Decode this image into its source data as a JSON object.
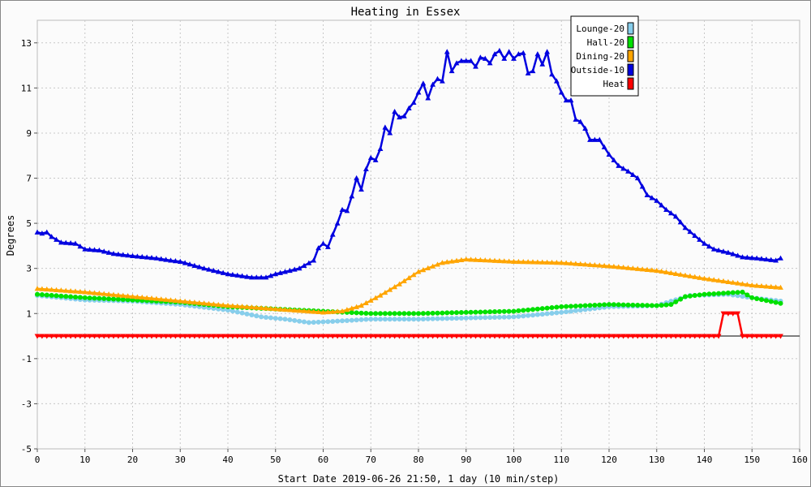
{
  "chart_data": {
    "type": "line",
    "title": "Heating in Essex",
    "xlabel": "Start Date 2019-06-26 21:50, 1 day (10 min/step)",
    "ylabel": "Degrees",
    "xlim": [
      0,
      160
    ],
    "ylim": [
      -5,
      14
    ],
    "xticks": [
      0,
      10,
      20,
      30,
      40,
      50,
      60,
      70,
      80,
      90,
      100,
      110,
      120,
      130,
      140,
      150,
      160
    ],
    "yticks": [
      -5,
      -3,
      -1,
      1,
      3,
      5,
      7,
      9,
      11,
      13
    ],
    "grid": true,
    "legend_position": "top-right",
    "series": [
      {
        "name": "Lounge-20",
        "color": "#87ceeb",
        "marker": "circle",
        "points": [
          [
            0,
            1.8
          ],
          [
            10,
            1.6
          ],
          [
            20,
            1.55
          ],
          [
            30,
            1.4
          ],
          [
            40,
            1.15
          ],
          [
            47,
            0.85
          ],
          [
            52,
            0.75
          ],
          [
            57,
            0.6
          ],
          [
            62,
            0.65
          ],
          [
            70,
            0.75
          ],
          [
            80,
            0.75
          ],
          [
            90,
            0.8
          ],
          [
            100,
            0.85
          ],
          [
            110,
            1.05
          ],
          [
            120,
            1.3
          ],
          [
            130,
            1.35
          ],
          [
            137,
            1.8
          ],
          [
            145,
            1.85
          ],
          [
            150,
            1.7
          ],
          [
            156,
            1.55
          ]
        ]
      },
      {
        "name": "Hall-20",
        "color": "#00e000",
        "marker": "circle",
        "points": [
          [
            0,
            1.85
          ],
          [
            10,
            1.7
          ],
          [
            20,
            1.6
          ],
          [
            30,
            1.5
          ],
          [
            40,
            1.3
          ],
          [
            50,
            1.2
          ],
          [
            60,
            1.1
          ],
          [
            70,
            1.0
          ],
          [
            80,
            1.0
          ],
          [
            90,
            1.05
          ],
          [
            100,
            1.1
          ],
          [
            110,
            1.3
          ],
          [
            120,
            1.4
          ],
          [
            130,
            1.35
          ],
          [
            133,
            1.4
          ],
          [
            136,
            1.75
          ],
          [
            140,
            1.85
          ],
          [
            148,
            1.95
          ],
          [
            150,
            1.7
          ],
          [
            156,
            1.45
          ]
        ]
      },
      {
        "name": "Dining-20",
        "color": "#ffa500",
        "marker": "triangle-up",
        "points": [
          [
            0,
            2.1
          ],
          [
            10,
            1.95
          ],
          [
            20,
            1.75
          ],
          [
            30,
            1.55
          ],
          [
            40,
            1.35
          ],
          [
            50,
            1.2
          ],
          [
            60,
            1.05
          ],
          [
            64,
            1.1
          ],
          [
            68,
            1.35
          ],
          [
            72,
            1.8
          ],
          [
            76,
            2.3
          ],
          [
            80,
            2.85
          ],
          [
            85,
            3.25
          ],
          [
            90,
            3.4
          ],
          [
            95,
            3.35
          ],
          [
            100,
            3.3
          ],
          [
            110,
            3.25
          ],
          [
            120,
            3.1
          ],
          [
            130,
            2.9
          ],
          [
            140,
            2.55
          ],
          [
            150,
            2.25
          ],
          [
            156,
            2.15
          ]
        ]
      },
      {
        "name": "Outside-10",
        "color": "#0000e0",
        "marker": "triangle-up",
        "points": [
          [
            0,
            4.6
          ],
          [
            1,
            4.55
          ],
          [
            2,
            4.6
          ],
          [
            3,
            4.4
          ],
          [
            5,
            4.15
          ],
          [
            8,
            4.1
          ],
          [
            10,
            3.85
          ],
          [
            13,
            3.8
          ],
          [
            16,
            3.65
          ],
          [
            20,
            3.55
          ],
          [
            25,
            3.45
          ],
          [
            28,
            3.35
          ],
          [
            30,
            3.3
          ],
          [
            35,
            3.0
          ],
          [
            40,
            2.75
          ],
          [
            45,
            2.6
          ],
          [
            48,
            2.6
          ],
          [
            50,
            2.75
          ],
          [
            55,
            3.0
          ],
          [
            58,
            3.35
          ],
          [
            59,
            3.9
          ],
          [
            60,
            4.1
          ],
          [
            61,
            3.95
          ],
          [
            62,
            4.5
          ],
          [
            63,
            5.0
          ],
          [
            64,
            5.6
          ],
          [
            65,
            5.55
          ],
          [
            66,
            6.2
          ],
          [
            67,
            7.0
          ],
          [
            68,
            6.5
          ],
          [
            69,
            7.4
          ],
          [
            70,
            7.9
          ],
          [
            71,
            7.8
          ],
          [
            72,
            8.3
          ],
          [
            73,
            9.25
          ],
          [
            74,
            9.0
          ],
          [
            75,
            9.95
          ],
          [
            76,
            9.7
          ],
          [
            77,
            9.75
          ],
          [
            78,
            10.1
          ],
          [
            79,
            10.35
          ],
          [
            80,
            10.8
          ],
          [
            81,
            11.2
          ],
          [
            82,
            10.55
          ],
          [
            83,
            11.15
          ],
          [
            84,
            11.4
          ],
          [
            85,
            11.3
          ],
          [
            86,
            12.6
          ],
          [
            87,
            11.75
          ],
          [
            88,
            12.1
          ],
          [
            89,
            12.2
          ],
          [
            90,
            12.2
          ],
          [
            91,
            12.2
          ],
          [
            92,
            11.95
          ],
          [
            93,
            12.35
          ],
          [
            94,
            12.3
          ],
          [
            95,
            12.1
          ],
          [
            96,
            12.5
          ],
          [
            97,
            12.65
          ],
          [
            98,
            12.3
          ],
          [
            99,
            12.6
          ],
          [
            100,
            12.3
          ],
          [
            101,
            12.5
          ],
          [
            102,
            12.55
          ],
          [
            103,
            11.65
          ],
          [
            104,
            11.75
          ],
          [
            105,
            12.5
          ],
          [
            106,
            12.05
          ],
          [
            107,
            12.6
          ],
          [
            108,
            11.6
          ],
          [
            109,
            11.3
          ],
          [
            110,
            10.8
          ],
          [
            111,
            10.45
          ],
          [
            112,
            10.45
          ],
          [
            113,
            9.6
          ],
          [
            114,
            9.5
          ],
          [
            115,
            9.2
          ],
          [
            116,
            8.7
          ],
          [
            117,
            8.7
          ],
          [
            118,
            8.7
          ],
          [
            120,
            8.05
          ],
          [
            122,
            7.55
          ],
          [
            124,
            7.3
          ],
          [
            126,
            7.0
          ],
          [
            128,
            6.25
          ],
          [
            130,
            6.0
          ],
          [
            132,
            5.6
          ],
          [
            134,
            5.3
          ],
          [
            136,
            4.8
          ],
          [
            138,
            4.45
          ],
          [
            140,
            4.1
          ],
          [
            142,
            3.85
          ],
          [
            145,
            3.7
          ],
          [
            148,
            3.5
          ],
          [
            151,
            3.45
          ],
          [
            153,
            3.4
          ],
          [
            155,
            3.35
          ],
          [
            156,
            3.45
          ]
        ]
      },
      {
        "name": "Heat",
        "color": "#ff0000",
        "marker": "triangle-down",
        "points": [
          [
            0,
            0
          ],
          [
            143,
            0
          ],
          [
            144,
            1
          ],
          [
            147,
            1
          ],
          [
            148,
            0
          ],
          [
            156,
            0
          ]
        ]
      }
    ]
  }
}
